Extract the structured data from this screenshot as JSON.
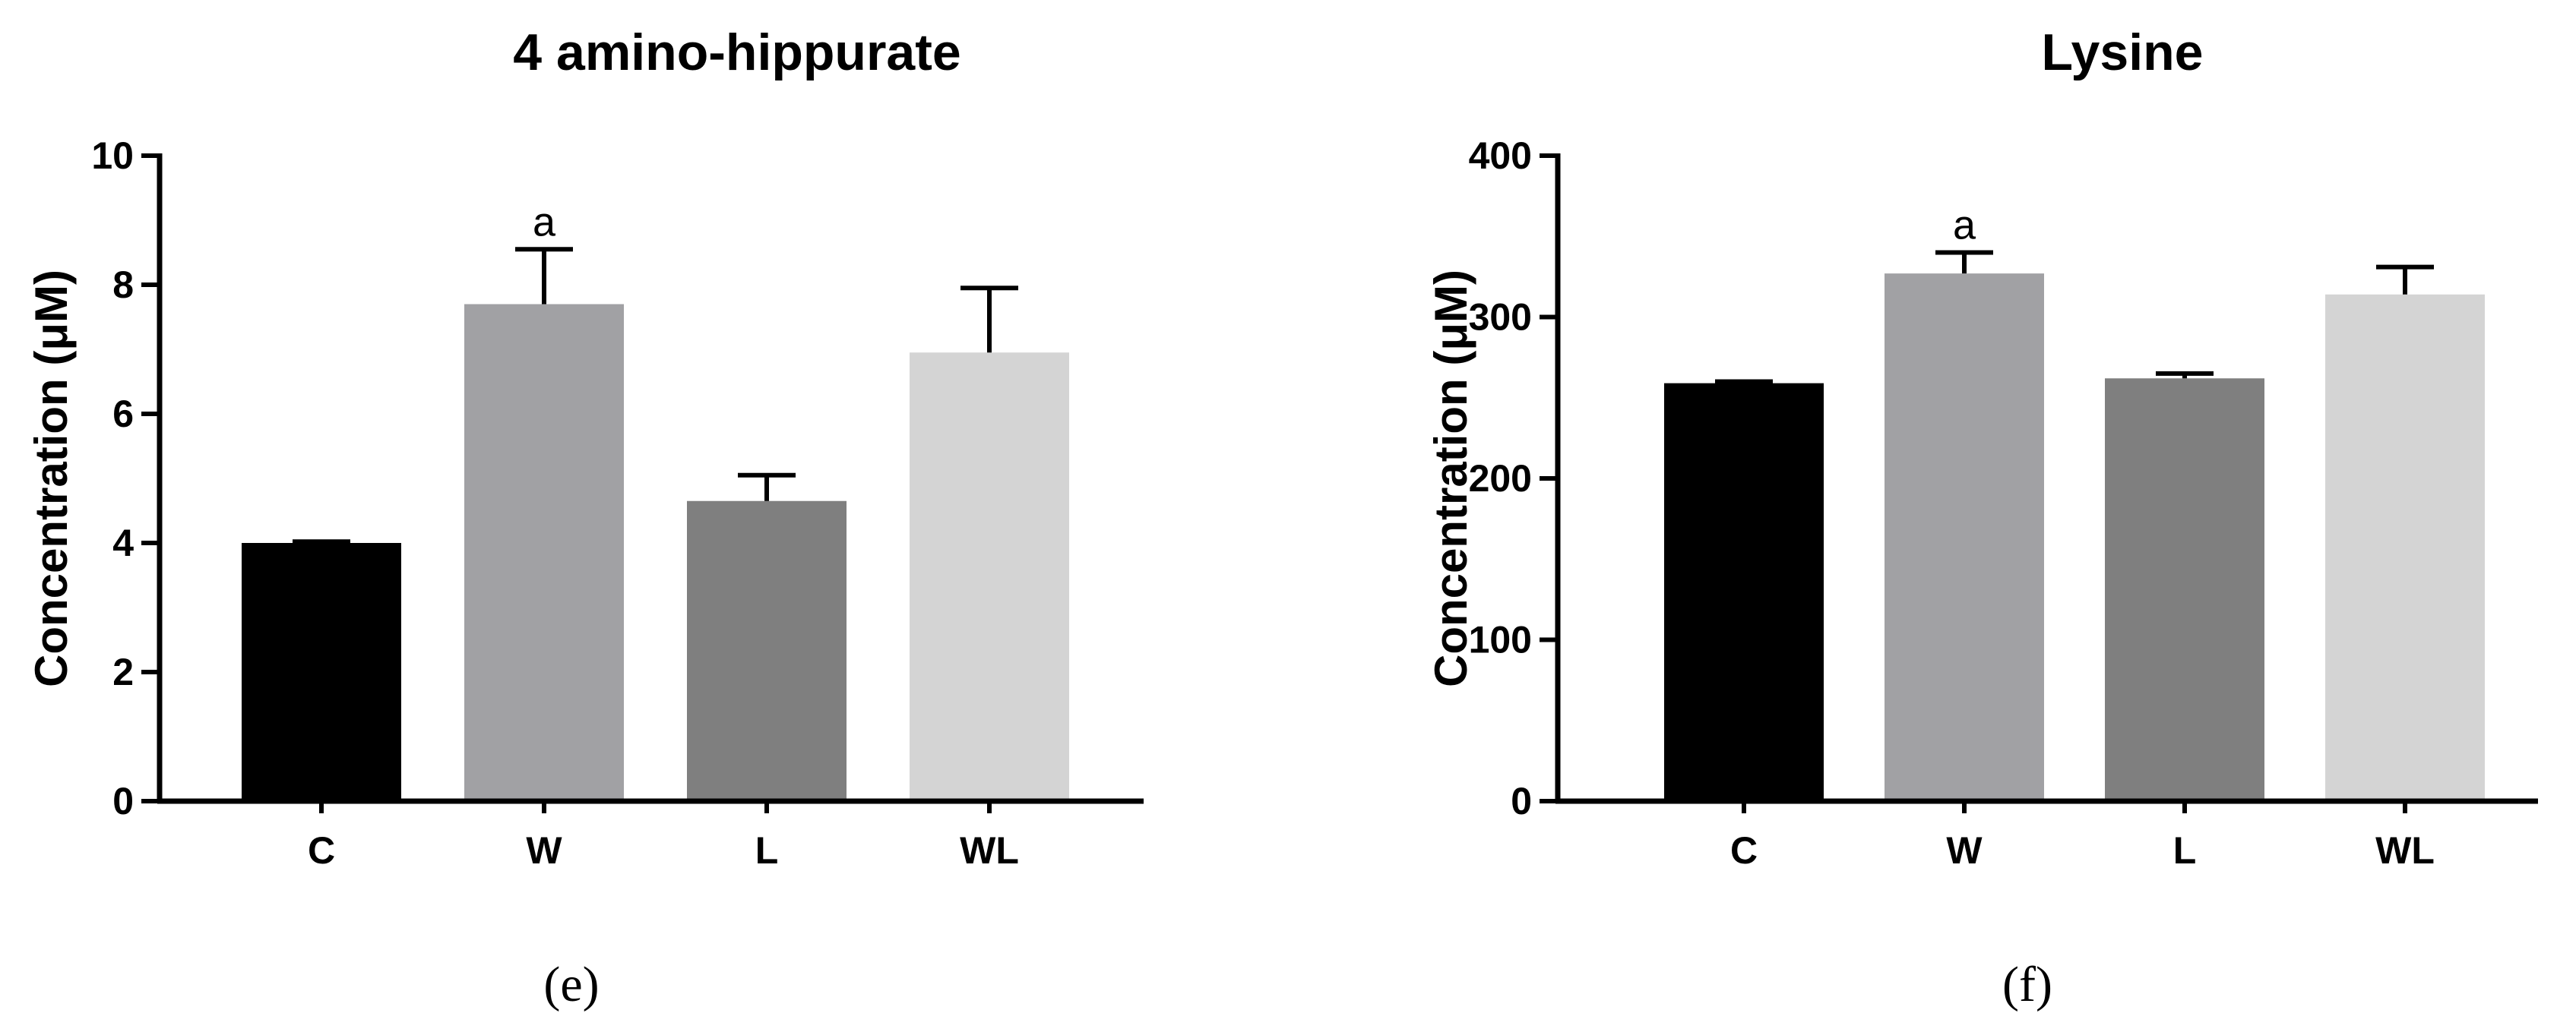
{
  "chart_data": [
    {
      "type": "bar",
      "title": "4 amino-hippurate",
      "ylabel": "Concentration (μM)",
      "xlabel": "",
      "caption": "(e)",
      "categories": [
        "C",
        "W",
        "L",
        "WL"
      ],
      "values": [
        4.0,
        7.7,
        4.65,
        6.95
      ],
      "error": [
        0.02,
        0.85,
        0.4,
        1.0
      ],
      "colors": [
        "#000000",
        "#a1a1a4",
        "#7f7f7f",
        "#d4d4d4"
      ],
      "annotations": [
        {
          "category": "W",
          "text": "a"
        }
      ],
      "ylim": [
        0,
        10
      ],
      "yticks": [
        "0",
        "2",
        "4",
        "6",
        "8",
        "10"
      ],
      "grid": false
    },
    {
      "type": "bar",
      "title": "Lysine",
      "ylabel": "Concentration (μM)",
      "xlabel": "",
      "caption": "(f)",
      "categories": [
        "C",
        "W",
        "L",
        "WL"
      ],
      "values": [
        259,
        327,
        262,
        314
      ],
      "error": [
        1,
        13,
        3,
        17
      ],
      "colors": [
        "#000000",
        "#a1a1a4",
        "#7f7f7f",
        "#d4d4d4"
      ],
      "annotations": [
        {
          "category": "W",
          "text": "a"
        }
      ],
      "ylim": [
        0,
        400
      ],
      "yticks": [
        "0",
        "100",
        "200",
        "300",
        "400"
      ],
      "grid": false
    }
  ]
}
